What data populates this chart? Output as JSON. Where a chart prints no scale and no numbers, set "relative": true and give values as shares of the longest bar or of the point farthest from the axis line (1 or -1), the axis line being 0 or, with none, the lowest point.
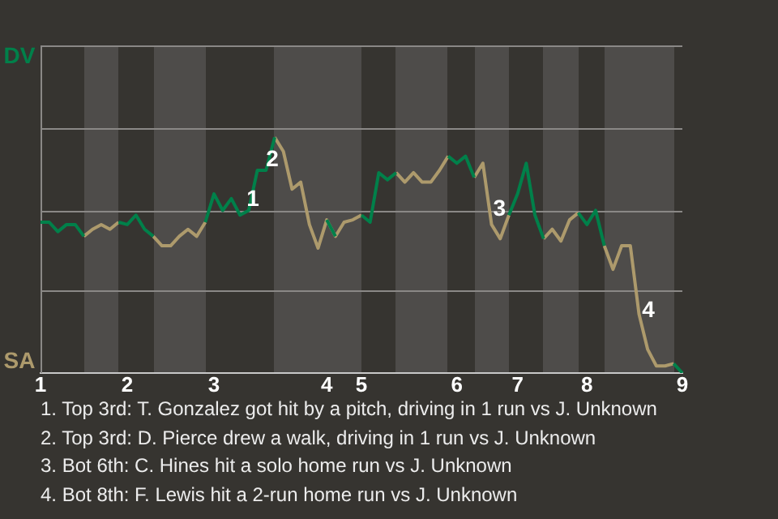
{
  "chart_data": {
    "type": "line",
    "relative": true,
    "categories": [
      "1",
      null,
      null,
      null,
      null,
      null,
      null,
      null,
      null,
      null,
      "2",
      null,
      null,
      null,
      null,
      null,
      null,
      null,
      null,
      null,
      "3",
      null,
      null,
      null,
      null,
      null,
      null,
      null,
      null,
      null,
      null,
      null,
      null,
      "4",
      null,
      null,
      null,
      "5",
      null,
      null,
      null,
      null,
      null,
      null,
      null,
      null,
      null,
      null,
      "6",
      null,
      null,
      null,
      null,
      null,
      null,
      "7",
      null,
      null,
      null,
      null,
      null,
      null,
      null,
      "8",
      null,
      null,
      null,
      null,
      null,
      null,
      null,
      null,
      null,
      null,
      "9"
    ],
    "series": [
      {
        "color": "#00804a",
        "values": [
          0.64,
          0.64,
          0.6,
          0.63,
          0.63,
          0.58,
          null,
          null,
          null,
          0.64,
          0.63,
          0.67,
          0.61,
          0.58,
          null,
          null,
          null,
          null,
          null,
          0.64,
          0.76,
          0.69,
          0.74,
          0.67,
          0.69,
          0.86,
          0.86,
          1,
          null,
          null,
          null,
          null,
          null,
          0.65,
          0.58,
          null,
          null,
          0.67,
          0.64,
          0.85,
          0.82,
          0.85,
          null,
          null,
          null,
          null,
          null,
          0.92,
          0.89,
          0.92,
          0.83,
          null,
          null,
          null,
          0.67,
          0.76,
          0.89,
          0.67,
          0.57,
          null,
          null,
          null,
          0.68,
          0.63,
          0.69,
          0.54,
          null,
          null,
          null,
          null,
          null,
          null,
          null,
          0.04,
          0
        ]
      },
      {
        "color": "#ad9a6c",
        "values": [
          null,
          null,
          null,
          null,
          null,
          0.58,
          0.61,
          0.63,
          0.61,
          0.64,
          null,
          null,
          null,
          0.58,
          0.54,
          0.54,
          0.58,
          0.61,
          0.58,
          0.64,
          null,
          null,
          null,
          null,
          null,
          null,
          null,
          1,
          0.94,
          0.78,
          0.81,
          0.63,
          0.53,
          0.65,
          0.58,
          0.64,
          0.65,
          0.67,
          null,
          null,
          null,
          0.85,
          0.81,
          0.85,
          0.81,
          0.81,
          0.86,
          0.92,
          null,
          null,
          0.83,
          0.89,
          0.63,
          0.57,
          0.67,
          null,
          null,
          null,
          0.57,
          0.61,
          0.56,
          0.65,
          0.68,
          null,
          null,
          0.54,
          0.44,
          0.54,
          0.54,
          0.25,
          0.1,
          0.03,
          0.03,
          0.04,
          null
        ]
      }
    ],
    "ref_lines": [
      {
        "axis": "y",
        "value": 0.35,
        "color": "#8a8886"
      },
      {
        "axis": "y",
        "value": 0.69,
        "color": "#8a8886"
      },
      {
        "axis": "y",
        "value": 1.04,
        "color": "#8a8886"
      },
      {
        "axis": "y",
        "value": 1.39,
        "color": "#8a8886"
      }
    ],
    "legend": false,
    "marker": "none",
    "line_style": "solid",
    "annotations": [
      "DV",
      "SA",
      "1",
      "2",
      "3",
      "4",
      "1. Top 3rd: T. Gonzalez got hit by a pitch, driving in 1 run vs J. Unknown",
      "2. Top 3rd: D. Pierce drew a walk, driving in 1 run vs J. Unknown",
      "3. Bot 6th: C. Hines hit a solo home run vs J. Unknown",
      "4. Bot 8th: F. Lewis hit a 2-run home run vs J. Unknown"
    ]
  }
}
